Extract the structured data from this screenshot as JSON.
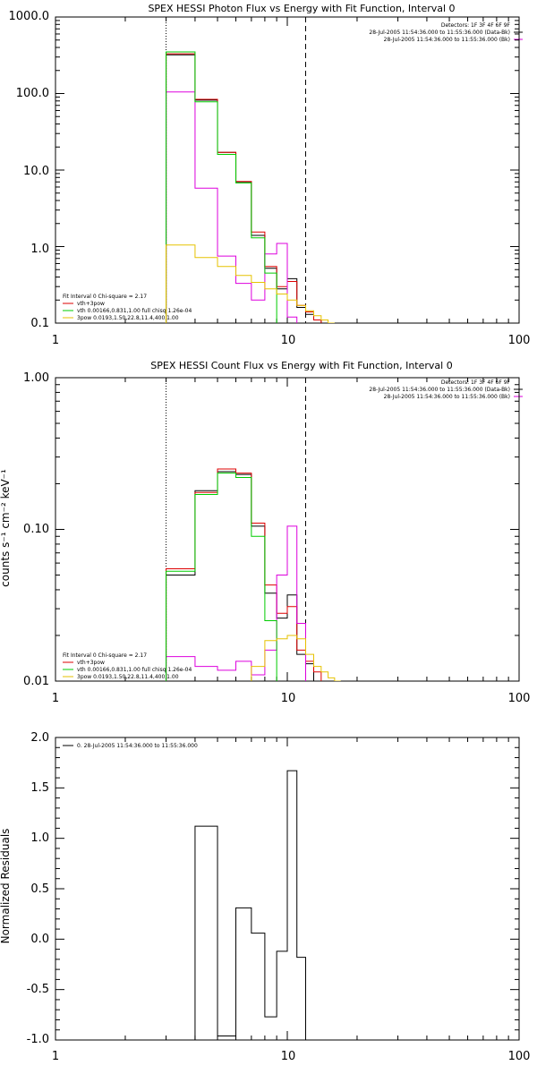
{
  "chart_data": [
    {
      "type": "line",
      "title": "SPEX HESSI Photon Flux vs Energy with Fit Function, Interval 0",
      "xscale": "log",
      "yscale": "log",
      "xlim": [
        1,
        100
      ],
      "ylim": [
        0.1,
        1000
      ],
      "xticks": [
        1,
        10,
        100
      ],
      "xtick_labels": [
        "1",
        "10",
        "100"
      ],
      "yticks": [
        0.1,
        1,
        10,
        100,
        1000
      ],
      "ytick_labels": [
        "0.1",
        "1.0",
        "10.0",
        "100.0",
        "1000.0"
      ],
      "ylabel": "",
      "vlines": [
        {
          "x": 3.0,
          "style": "dotted"
        },
        {
          "x": 12.0,
          "style": "dashed"
        }
      ],
      "info_top": [
        "Detectors: 1F 3F 4F 6F 9F",
        "28-Jul-2005 11:54:36.000 to 11:55:36.000 (Data-Bk)",
        "28-Jul-2005 11:54:36.000 to 11:55:36.000 (Bk)"
      ],
      "info_bottom": [
        "Fit Interval 0   Chi-square = 2.17",
        "vth+3pow",
        "vth 0.00166,0.831,1.00   full chisq 1.26e-04",
        "3pow 0.0193,1.50,22.8,11.4,400,1.00"
      ],
      "edges": [
        3.0,
        4.0,
        5.0,
        6.0,
        7.0,
        8.0,
        9.0,
        10.0,
        11.0,
        12.0,
        13.0,
        14.0,
        15.0,
        16.0
      ],
      "series": [
        {
          "key": "data_bk",
          "color": "#000000",
          "values": [
            320,
            82,
            17,
            7,
            1.4,
            0.52,
            0.28,
            0.38,
            0.16,
            0.13,
            0.11,
            null,
            null
          ]
        },
        {
          "key": "fit_total",
          "color": "#dd0000",
          "values": [
            330,
            84,
            17,
            7.1,
            1.55,
            0.55,
            0.3,
            0.35,
            0.17,
            0.14,
            0.11,
            null,
            null
          ]
        },
        {
          "key": "bk",
          "color": "#dd00dd",
          "values": [
            105,
            5.8,
            0.75,
            0.33,
            0.2,
            0.8,
            1.1,
            0.12,
            null,
            null,
            null,
            null,
            null
          ]
        },
        {
          "key": "vth",
          "color": "#00cc00",
          "values": [
            350,
            78,
            16,
            6.8,
            1.3,
            0.45,
            null,
            null,
            null,
            null,
            null,
            null,
            null
          ]
        },
        {
          "key": "pow",
          "color": "#e6c200",
          "values": [
            1.05,
            0.72,
            0.55,
            0.42,
            0.34,
            0.28,
            0.24,
            0.2,
            0.17,
            0.145,
            0.125,
            0.11,
            0.1
          ]
        }
      ]
    },
    {
      "type": "line",
      "title": "SPEX HESSI Count Flux vs Energy with Fit Function, Interval 0",
      "xscale": "log",
      "yscale": "log",
      "xlim": [
        1,
        100
      ],
      "ylim": [
        0.01,
        1.0
      ],
      "xticks": [
        1,
        10,
        100
      ],
      "xtick_labels": [
        "1",
        "10",
        "100"
      ],
      "yticks": [
        0.01,
        0.1,
        1.0
      ],
      "ytick_labels": [
        "0.01",
        "0.10",
        "1.00"
      ],
      "ylabel": "counts s⁻¹ cm⁻² keV⁻¹",
      "vlines": [
        {
          "x": 3.0,
          "style": "dotted"
        },
        {
          "x": 12.0,
          "style": "dashed"
        }
      ],
      "info_top": [
        "Detectors: 1F 3F 4F 6F 9F",
        "28-Jul-2005 11:54:36.000 to 11:55:36.000 (Data-Bk)",
        "28-Jul-2005 11:54:36.000 to 11:55:36.000 (Bk)"
      ],
      "info_bottom": [
        "Fit Interval 0   Chi-square = 2.17",
        "vth+3pow",
        "vth 0.00166,0.831,1.00   full chisq 1.26e-04",
        "3pow 0.0193,1.50,22.8,11.4,400,1.00"
      ],
      "edges": [
        3.0,
        4.0,
        5.0,
        6.0,
        7.0,
        8.0,
        9.0,
        10.0,
        11.0,
        12.0,
        13.0,
        14.0,
        15.0,
        16.0,
        17.0
      ],
      "series": [
        {
          "key": "data_bk",
          "color": "#000000",
          "values": [
            0.05,
            0.18,
            0.24,
            0.23,
            0.105,
            0.038,
            0.026,
            0.037,
            0.015,
            0.013,
            null,
            null,
            null,
            null
          ]
        },
        {
          "key": "fit_total",
          "color": "#dd0000",
          "values": [
            0.055,
            0.175,
            0.25,
            0.235,
            0.11,
            0.043,
            0.028,
            0.031,
            0.016,
            0.0135,
            0.0115,
            null,
            null,
            null
          ]
        },
        {
          "key": "bk",
          "color": "#dd00dd",
          "values": [
            0.0145,
            0.0125,
            0.0118,
            0.0135,
            0.011,
            0.016,
            0.05,
            0.105,
            0.024,
            null,
            null,
            null,
            null,
            null
          ]
        },
        {
          "key": "vth",
          "color": "#00cc00",
          "values": [
            0.053,
            0.17,
            0.235,
            0.22,
            0.09,
            0.025,
            null,
            null,
            null,
            null,
            null,
            null,
            null,
            null
          ]
        },
        {
          "key": "pow",
          "color": "#e6c200",
          "values": [
            null,
            null,
            null,
            null,
            0.0125,
            0.0185,
            0.019,
            0.02,
            0.019,
            0.015,
            0.0125,
            0.0115,
            0.0105,
            0.01
          ]
        }
      ]
    },
    {
      "type": "line",
      "title": "",
      "xscale": "log",
      "yscale": "linear",
      "xlim": [
        1,
        100
      ],
      "ylim": [
        -1.0,
        2.0
      ],
      "xticks": [
        1,
        10,
        100
      ],
      "xtick_labels": [
        "1",
        "10",
        "100"
      ],
      "yticks": [
        -1.0,
        -0.5,
        0.0,
        0.5,
        1.0,
        1.5,
        2.0
      ],
      "ytick_labels": [
        "-1.0",
        "-0.5",
        "0.0",
        "0.5",
        "1.0",
        "1.5",
        "2.0"
      ],
      "ylabel": "Normalized Residuals",
      "legend": "0. 28-Jul-2005 11:54:36.000 to 11:55:36.000",
      "edges": [
        3.0,
        4.0,
        5.0,
        6.0,
        7.0,
        8.0,
        9.0,
        10.0,
        11.0,
        12.0
      ],
      "series": [
        {
          "key": "residuals",
          "color": "#000000",
          "values": [
            -1.0,
            1.12,
            -0.96,
            0.31,
            0.06,
            -0.77,
            -0.12,
            1.67,
            -0.18
          ]
        }
      ]
    }
  ]
}
